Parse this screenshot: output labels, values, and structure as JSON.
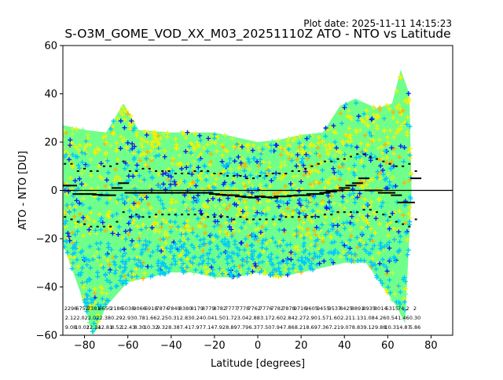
{
  "header": {
    "plot_date": "Plot date: 2025-11-11 14:15:23",
    "title": "S-O3M_GOME_VOD_XX_M03_20251110Z ATO - NTO vs Latitude"
  },
  "chart_data": {
    "type": "scatter",
    "title": "S-O3M_GOME_VOD_XX_M03_20251110Z ATO - NTO vs Latitude",
    "xlabel": "Latitude [degrees]",
    "ylabel": "ATO - NTO [DU]",
    "xlim": [
      -90,
      90
    ],
    "ylim": [
      -60,
      60
    ],
    "xticks": [
      -80,
      -60,
      -40,
      -20,
      0,
      20,
      40,
      60,
      80
    ],
    "yticks": [
      -60,
      -40,
      -20,
      0,
      20,
      40,
      60
    ],
    "grid": false,
    "legend": "none",
    "zero_line": 0,
    "colors": {
      "green": "#6fff8a",
      "cyan": "#00c8ff",
      "yellow": "#f8f000",
      "orange": "#ffb000",
      "blue": "#0022ff",
      "lime": "#c8ff3a"
    },
    "point_cloud": {
      "lat_range": [
        -90,
        71
      ],
      "upper_envelope": [
        [
          -90,
          27
        ],
        [
          -80,
          25
        ],
        [
          -70,
          24
        ],
        [
          -62,
          36
        ],
        [
          -55,
          25
        ],
        [
          -40,
          24
        ],
        [
          -20,
          24
        ],
        [
          -10,
          22
        ],
        [
          0,
          20
        ],
        [
          10,
          21
        ],
        [
          20,
          23
        ],
        [
          30,
          24
        ],
        [
          38,
          35
        ],
        [
          45,
          38
        ],
        [
          55,
          34
        ],
        [
          62,
          36
        ],
        [
          66,
          50
        ],
        [
          70,
          40
        ],
        [
          71,
          0
        ]
      ],
      "lower_envelope": [
        [
          -90,
          -22
        ],
        [
          -82,
          -42
        ],
        [
          -76,
          -60
        ],
        [
          -70,
          -48
        ],
        [
          -60,
          -38
        ],
        [
          -50,
          -36
        ],
        [
          -40,
          -34
        ],
        [
          -30,
          -34
        ],
        [
          -20,
          -36
        ],
        [
          -10,
          -36
        ],
        [
          0,
          -34
        ],
        [
          10,
          -36
        ],
        [
          20,
          -34
        ],
        [
          30,
          -32
        ],
        [
          40,
          -30
        ],
        [
          50,
          -30
        ],
        [
          58,
          -40
        ],
        [
          64,
          -48
        ],
        [
          68,
          -55
        ],
        [
          71,
          0
        ]
      ]
    },
    "series": [
      {
        "type": "mean",
        "x": [
          -89,
          -86,
          -83,
          -80,
          -77,
          -74,
          -71,
          -68,
          -65,
          -62,
          -59,
          -56,
          -53,
          -50,
          -47,
          -44,
          -41,
          -38,
          -35,
          -32,
          -29,
          -26,
          -23,
          -20,
          -17,
          -14,
          -11,
          -8,
          -5,
          -2,
          1,
          4,
          7,
          10,
          13,
          16,
          19,
          22,
          25,
          28,
          31,
          34,
          37,
          40,
          43,
          46,
          49,
          52,
          55,
          58,
          61,
          64,
          67,
          70,
          73
        ],
        "values": [
          2,
          2,
          -1.5,
          -1.5,
          -1.5,
          -1.8,
          -2,
          -2,
          1,
          3,
          -1,
          -1,
          -1,
          -1,
          -1,
          -1,
          -1,
          -1,
          -1,
          -1,
          -1,
          -1,
          -1,
          -1.5,
          -1.8,
          -2,
          -2,
          -2.5,
          -2.8,
          -3,
          -2.5,
          -2.8,
          -3,
          -2.5,
          -2.5,
          -2.2,
          -2,
          -2,
          -1.5,
          -1.5,
          -1,
          -0.5,
          0,
          1,
          2,
          3,
          5,
          0,
          0,
          -1,
          -1,
          -2,
          -5,
          -5,
          5
        ]
      },
      {
        "type": "mean + std",
        "x": [
          -89,
          -86,
          -83,
          -80,
          -77,
          -74,
          -71,
          -68,
          -65,
          -62,
          -59,
          -56,
          -53,
          -50,
          -47,
          -44,
          -41,
          -38,
          -35,
          -32,
          -29,
          -26,
          -23,
          -20,
          -17,
          -14,
          -11,
          -8,
          -5,
          -2,
          1,
          4,
          7,
          10,
          13,
          16,
          19,
          22,
          25,
          28,
          31,
          34,
          37,
          40,
          43,
          46,
          49,
          52,
          55,
          58,
          61,
          64,
          67,
          70,
          73
        ],
        "values": [
          11,
          11,
          8,
          9,
          8,
          8,
          10,
          10,
          11,
          12,
          8,
          8,
          9,
          9,
          8,
          8,
          8,
          7,
          7,
          7,
          8,
          8,
          8,
          7,
          7,
          6,
          6,
          6,
          5,
          5,
          6,
          6,
          7,
          7,
          7,
          8,
          8,
          9,
          10,
          11,
          12,
          12,
          13,
          13,
          14,
          15,
          15,
          14,
          13,
          12,
          11,
          10,
          10,
          11,
          8
        ]
      },
      {
        "type": "mean - std",
        "x": [
          -89,
          -86,
          -83,
          -80,
          -77,
          -74,
          -71,
          -68,
          -65,
          -62,
          -59,
          -56,
          -53,
          -50,
          -47,
          -44,
          -41,
          -38,
          -35,
          -32,
          -29,
          -26,
          -23,
          -20,
          -17,
          -14,
          -11,
          -8,
          -5,
          -2,
          1,
          4,
          7,
          10,
          13,
          16,
          19,
          22,
          25,
          28,
          31,
          34,
          37,
          40,
          43,
          46,
          49,
          52,
          55,
          58,
          61,
          64,
          67,
          70,
          73
        ],
        "values": [
          -11,
          -12,
          -13,
          -14,
          -15,
          -15,
          -15,
          -15,
          -13,
          -9,
          -11,
          -10,
          -11,
          -11,
          -10,
          -10,
          -10,
          -10,
          -10,
          -10,
          -10,
          -10,
          -11,
          -11,
          -11,
          -11,
          -12,
          -11,
          -12,
          -12,
          -12,
          -12,
          -12,
          -12,
          -11,
          -11,
          -11,
          -11,
          -11,
          -11,
          -10,
          -10,
          -9,
          -9,
          -9,
          -9,
          -8,
          -8,
          -9,
          -10,
          -11,
          -13,
          -14,
          -15,
          -12
        ]
      }
    ],
    "annotations": {
      "row1": [
        "2296",
        "6752",
        "2381",
        "6650",
        "2186",
        "5038",
        "9066",
        "6918",
        "7874",
        "7849",
        "8380",
        "8179",
        "8779",
        "8782",
        "7777",
        "7778",
        "7762",
        "7776",
        "7782",
        "7878",
        "9716",
        "9605",
        "9455",
        "9537",
        "8425",
        "8891",
        "8935",
        "8014",
        "5315",
        "74.2",
        "2"
      ],
      "row2": [
        "2.12",
        "2.02",
        "2.02",
        "2.38",
        "0.29",
        "2.93",
        "0.78",
        "1.66",
        "2.25",
        "0.31",
        "2.83",
        "0.24",
        "0.04",
        "1.50",
        "1.72",
        "3.04",
        "2.88",
        "3.17",
        "2.60",
        "2.84",
        "2.27",
        "2.90",
        "1.57",
        "1.60",
        "2.21",
        "1.13",
        "1.08",
        "4.26",
        "0.54",
        "1.46",
        "0.30"
      ],
      "row3": [
        "9.08",
        "10.02",
        "12.34",
        "12.81",
        "8.52",
        "12.43",
        "8.30",
        "10.32",
        "9.32",
        "8.38",
        "7.41",
        "7.97",
        "7.14",
        "7.92",
        "8.89",
        "7.79",
        "6.37",
        "7.50",
        "7.94",
        "7.86",
        "8.21",
        "8.69",
        "7.36",
        "7.21",
        "9.07",
        "8.83",
        "9.12",
        "9.88",
        "10.31",
        "14.87",
        "5.86"
      ]
    }
  }
}
